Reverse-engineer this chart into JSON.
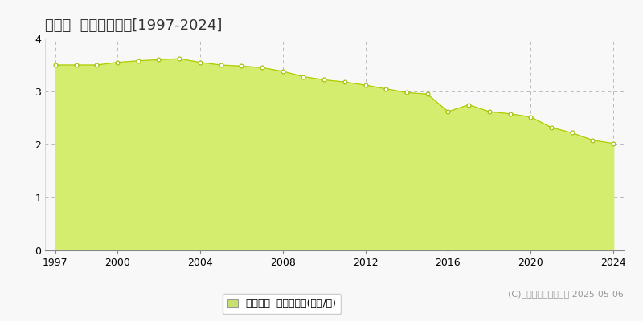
{
  "title": "幌延町  基準地価推移[1997-2024]",
  "years": [
    1997,
    1998,
    1999,
    2000,
    2001,
    2002,
    2003,
    2004,
    2005,
    2006,
    2007,
    2008,
    2009,
    2010,
    2011,
    2012,
    2013,
    2014,
    2015,
    2016,
    2017,
    2018,
    2019,
    2020,
    2021,
    2022,
    2023,
    2024
  ],
  "values": [
    3.5,
    3.5,
    3.5,
    3.55,
    3.58,
    3.6,
    3.62,
    3.55,
    3.5,
    3.48,
    3.45,
    3.38,
    3.28,
    3.22,
    3.18,
    3.12,
    3.05,
    2.98,
    2.95,
    2.62,
    2.75,
    2.62,
    2.58,
    2.52,
    2.32,
    2.22,
    2.08,
    2.02
  ],
  "fill_color": "#d4ed6e",
  "line_color": "#b0cc00",
  "marker_face_color": "#ffffff",
  "marker_edge_color": "#a0bb00",
  "bg_color": "#f8f8f8",
  "plot_bg_color": "#f8f8f8",
  "grid_color": "#bbbbbb",
  "yticks": [
    0,
    1,
    2,
    3,
    4
  ],
  "xticks": [
    1997,
    2000,
    2004,
    2008,
    2012,
    2016,
    2020,
    2024
  ],
  "ylim": [
    0,
    4
  ],
  "legend_label": "基準地価  平均嵪単価(万円/嵪)",
  "legend_color": "#c8e06e",
  "copyright_text": "(C)土地価格ドットコム 2025-05-06",
  "title_fontsize": 13,
  "axis_fontsize": 9,
  "legend_fontsize": 9,
  "copyright_fontsize": 8
}
